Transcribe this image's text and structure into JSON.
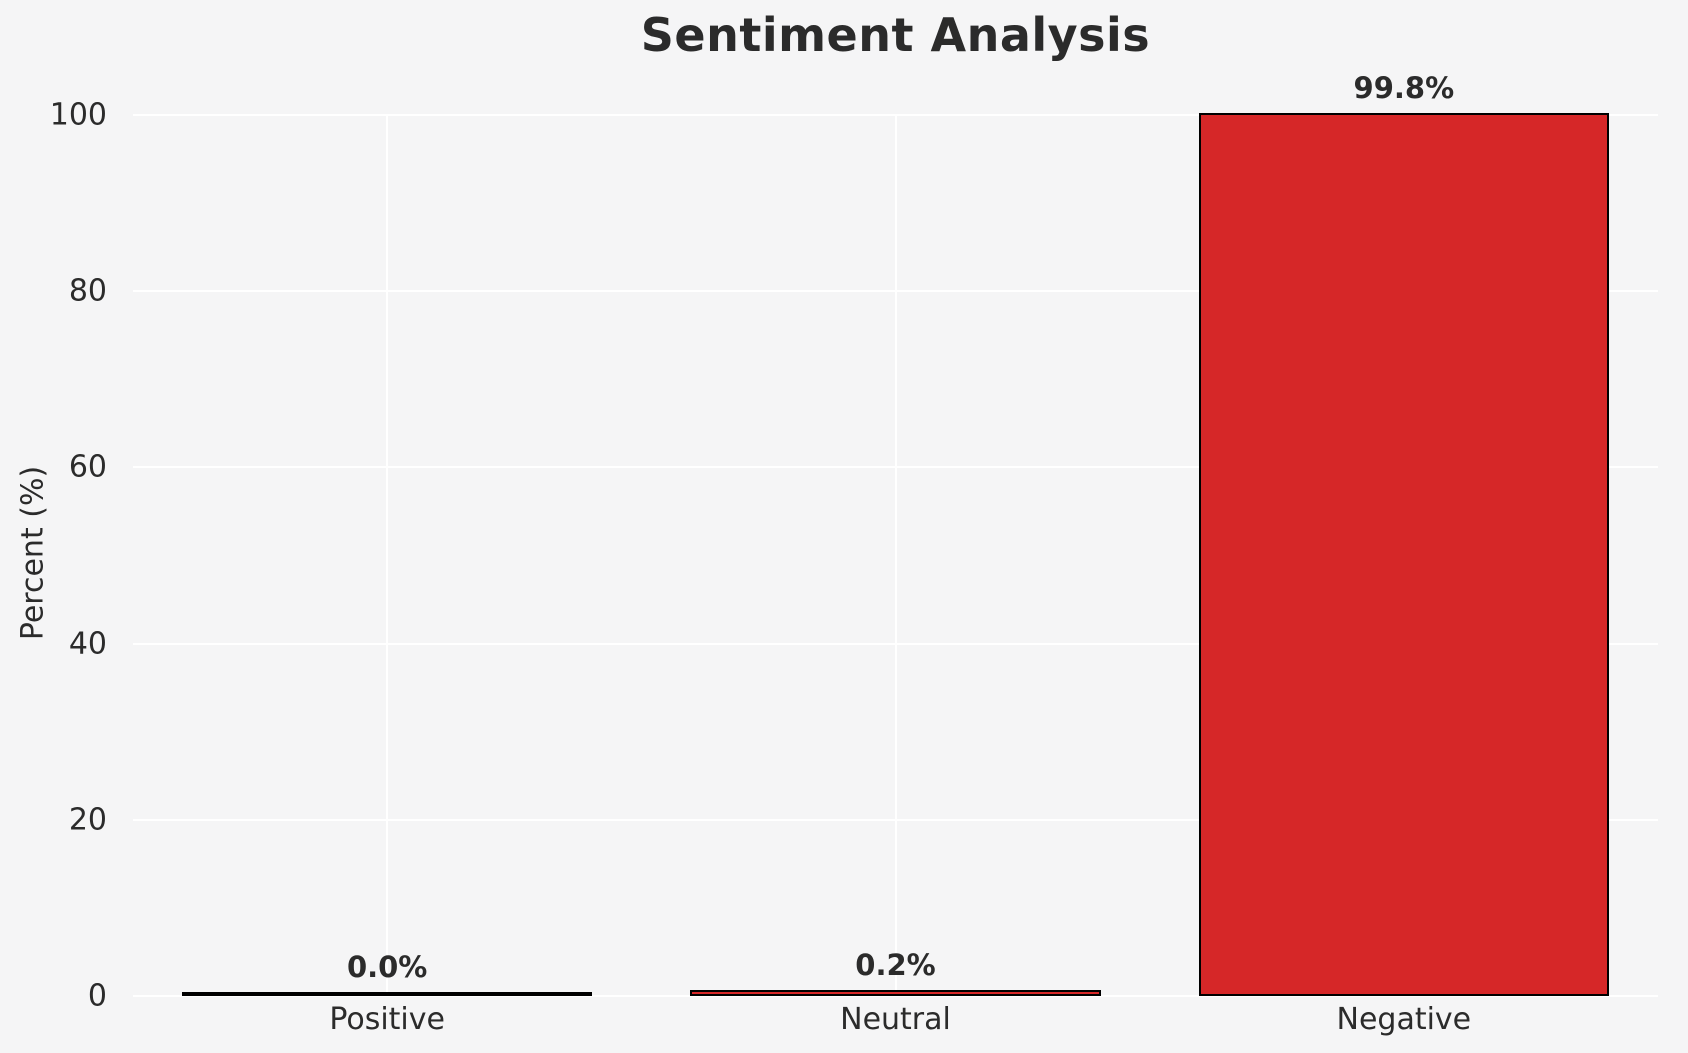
{
  "chart_data": {
    "type": "bar",
    "title": "Sentiment Analysis",
    "ylabel": "Percent (%)",
    "xlabel": "",
    "categories": [
      "Positive",
      "Neutral",
      "Negative"
    ],
    "values": [
      0.0,
      0.2,
      99.8
    ],
    "value_labels": [
      "0.0%",
      "0.2%",
      "99.8%"
    ],
    "yticks": [
      0,
      20,
      40,
      60,
      80,
      100
    ],
    "ylim": [
      0,
      100
    ],
    "grid": true,
    "legend": false,
    "layout": {
      "bar_width_fraction": 0.8
    },
    "colors": {
      "background": "#f5f5f6",
      "grid": "#ffffff",
      "text": "#2b2b2b",
      "bar_fill": "#d62728",
      "bar_edge": "#000000"
    }
  }
}
